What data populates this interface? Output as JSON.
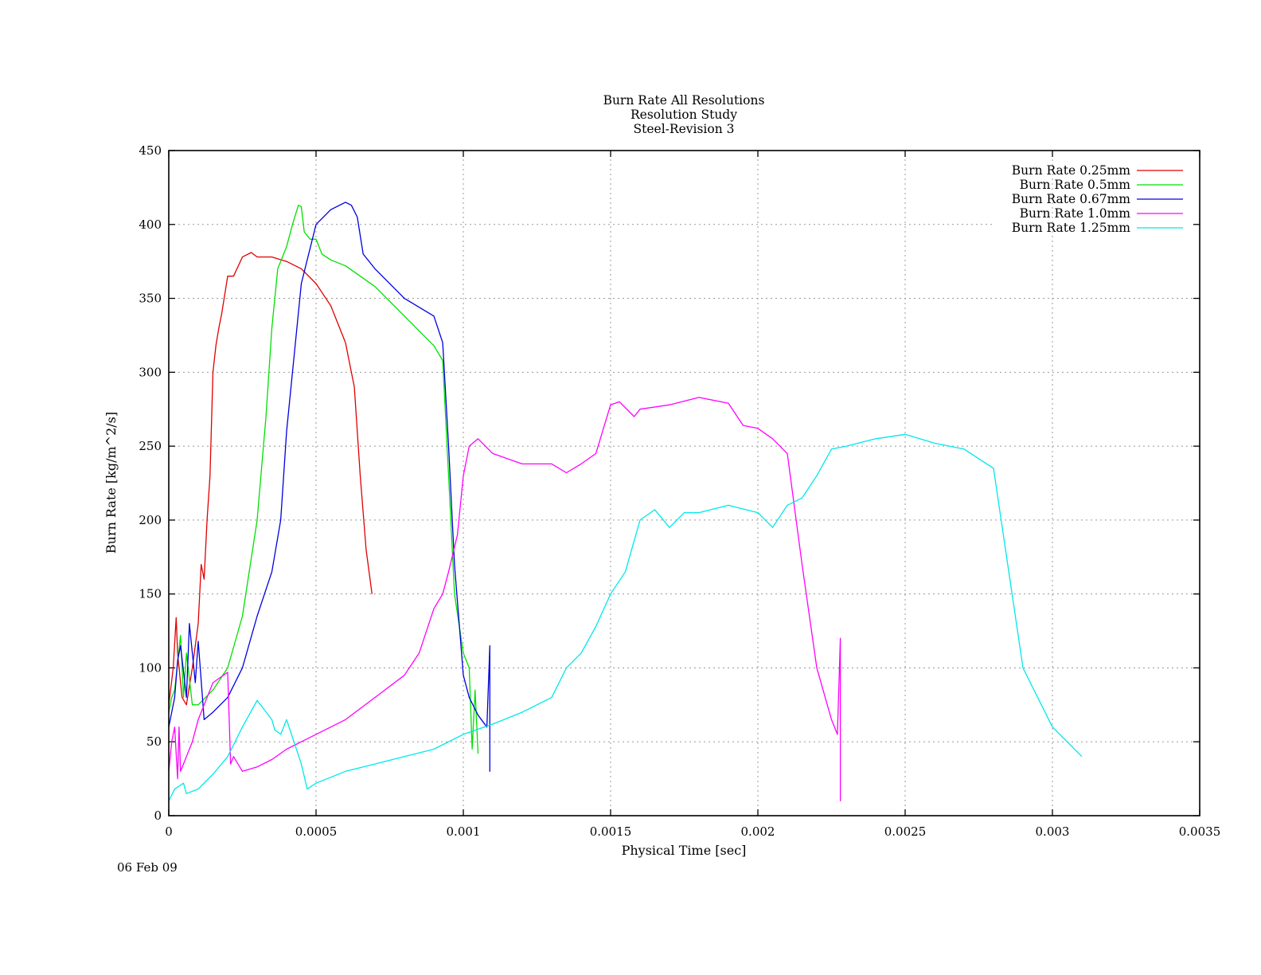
{
  "chart_data": {
    "type": "line",
    "title": [
      "Burn Rate All Resolutions",
      "Resolution Study",
      "Steel-Revision 3"
    ],
    "xlabel": "Physical Time [sec]",
    "ylabel": "Burn Rate [kg/m^2/s]",
    "xlabel_color": "#00e000",
    "ylabel_color": "#e00000",
    "xlim": [
      0,
      0.0035
    ],
    "ylim": [
      0,
      450
    ],
    "xticks": [
      0,
      0.0005,
      0.001,
      0.0015,
      0.002,
      0.0025,
      0.003,
      0.0035
    ],
    "xtick_labels": [
      "0",
      "0.0005",
      "0.001",
      "0.0015",
      "0.002",
      "0.0025",
      "0.003",
      "0.0035"
    ],
    "yticks": [
      0,
      50,
      100,
      150,
      200,
      250,
      300,
      350,
      400,
      450
    ],
    "ytick_labels": [
      "0",
      "50",
      "100",
      "150",
      "200",
      "250",
      "300",
      "350",
      "400",
      "450"
    ],
    "grid": true,
    "legend_position": "top-right",
    "date_stamp": "06 Feb 09",
    "series": [
      {
        "name": "Burn Rate 0.25mm",
        "color": "#e00000",
        "x": [
          0,
          1.5e-05,
          2.5e-05,
          3e-05,
          4.5e-05,
          6e-05,
          8e-05,
          0.0001,
          0.00011,
          0.00012,
          0.00013,
          0.00014,
          0.00015,
          0.00016,
          0.00017,
          0.00018,
          0.0002,
          0.00022,
          0.00025,
          0.00028,
          0.0003,
          0.00035,
          0.0004,
          0.00045,
          0.0005,
          0.00055,
          0.0006,
          0.00063,
          0.00065,
          0.00067,
          0.00069
        ],
        "y": [
          75,
          100,
          134,
          110,
          80,
          75,
          100,
          130,
          170,
          160,
          200,
          230,
          300,
          318,
          330,
          340,
          365,
          365,
          378,
          381,
          378,
          378,
          375,
          370,
          360,
          345,
          320,
          290,
          230,
          180,
          150
        ]
      },
      {
        "name": "Burn Rate 0.5mm",
        "color": "#00e000",
        "x": [
          0,
          1e-05,
          2e-05,
          4e-05,
          5e-05,
          6e-05,
          8e-05,
          0.0001,
          0.00015,
          0.0002,
          0.00025,
          0.0003,
          0.00033,
          0.00035,
          0.00037,
          0.0004,
          0.00042,
          0.00044,
          0.00045,
          0.00046,
          0.00048,
          0.0005,
          0.00052,
          0.00055,
          0.0006,
          0.0007,
          0.0008,
          0.0009,
          0.00093,
          0.00095,
          0.00097,
          0.001,
          0.00102,
          0.00103,
          0.00104,
          0.00105
        ],
        "y": [
          70,
          80,
          85,
          122,
          80,
          110,
          75,
          75,
          85,
          100,
          135,
          200,
          270,
          330,
          370,
          385,
          400,
          413,
          412,
          395,
          390,
          390,
          380,
          376,
          372,
          358,
          338,
          318,
          308,
          230,
          150,
          110,
          100,
          45,
          85,
          42
        ]
      },
      {
        "name": "Burn Rate 0.67mm",
        "color": "#0000e0",
        "x": [
          0,
          1e-05,
          2e-05,
          3e-05,
          4e-05,
          6e-05,
          7e-05,
          9e-05,
          0.0001,
          0.00012,
          0.00015,
          0.0002,
          0.00025,
          0.0003,
          0.00035,
          0.00038,
          0.0004,
          0.00042,
          0.00045,
          0.0005,
          0.00055,
          0.0006,
          0.00062,
          0.00064,
          0.00066,
          0.0007,
          0.0008,
          0.0009,
          0.00093,
          0.00095,
          0.00097,
          0.00099,
          0.001,
          0.00102,
          0.00105,
          0.00108,
          0.00109,
          0.00109,
          0.00109
        ],
        "y": [
          60,
          70,
          80,
          105,
          115,
          80,
          130,
          90,
          118,
          65,
          70,
          80,
          100,
          135,
          165,
          200,
          260,
          300,
          360,
          400,
          410,
          415,
          413,
          405,
          380,
          370,
          350,
          338,
          320,
          250,
          170,
          120,
          95,
          80,
          68,
          60,
          115,
          30,
          60
        ]
      },
      {
        "name": "Burn Rate 1.0mm",
        "color": "#ff00ff",
        "x": [
          0,
          1e-05,
          2e-05,
          3e-05,
          3.5e-05,
          4e-05,
          5e-05,
          6e-05,
          8e-05,
          0.0001,
          0.00015,
          0.0002,
          0.00021,
          0.00022,
          0.00025,
          0.0003,
          0.00035,
          0.0004,
          0.00045,
          0.0005,
          0.0006,
          0.0007,
          0.0008,
          0.00085,
          0.0009,
          0.00093,
          0.00095,
          0.00098,
          0.001,
          0.00102,
          0.00105,
          0.0011,
          0.0012,
          0.0013,
          0.00135,
          0.0014,
          0.00145,
          0.0015,
          0.00153,
          0.00158,
          0.0016,
          0.0017,
          0.0018,
          0.0019,
          0.00195,
          0.002,
          0.00205,
          0.0021,
          0.00212,
          0.00215,
          0.0022,
          0.00225,
          0.00227,
          0.00228,
          0.00228,
          0.00228
        ],
        "y": [
          30,
          50,
          60,
          25,
          60,
          30,
          35,
          40,
          50,
          65,
          90,
          97,
          35,
          40,
          30,
          33,
          38,
          45,
          50,
          55,
          65,
          80,
          95,
          110,
          140,
          150,
          165,
          190,
          230,
          250,
          255,
          245,
          238,
          238,
          232,
          238,
          245,
          278,
          280,
          270,
          275,
          278,
          283,
          279,
          264,
          262,
          255,
          245,
          215,
          170,
          100,
          65,
          55,
          120,
          10,
          55
        ]
      },
      {
        "name": "Burn Rate 1.25mm",
        "color": "#00e8e8",
        "x": [
          0,
          2e-05,
          5e-05,
          6e-05,
          0.0001,
          0.00015,
          0.0002,
          0.00025,
          0.0003,
          0.00035,
          0.00036,
          0.00038,
          0.0004,
          0.00045,
          0.00047,
          0.0005,
          0.0006,
          0.0007,
          0.0008,
          0.0009,
          0.001,
          0.0011,
          0.0012,
          0.0013,
          0.00135,
          0.0014,
          0.00145,
          0.0015,
          0.00155,
          0.0016,
          0.00165,
          0.0017,
          0.00175,
          0.0018,
          0.0019,
          0.002,
          0.00205,
          0.0021,
          0.00215,
          0.0022,
          0.00225,
          0.0023,
          0.0024,
          0.0025,
          0.0026,
          0.0027,
          0.0028,
          0.0029,
          0.003,
          0.0031
        ],
        "y": [
          10,
          18,
          22,
          15,
          18,
          28,
          40,
          60,
          78,
          65,
          58,
          55,
          65,
          35,
          18,
          22,
          30,
          35,
          40,
          45,
          55,
          62,
          70,
          80,
          100,
          110,
          128,
          150,
          165,
          200,
          207,
          195,
          205,
          205,
          210,
          205,
          195,
          210,
          215,
          230,
          248,
          250,
          255,
          258,
          252,
          248,
          235,
          100,
          60,
          40
        ]
      }
    ]
  }
}
